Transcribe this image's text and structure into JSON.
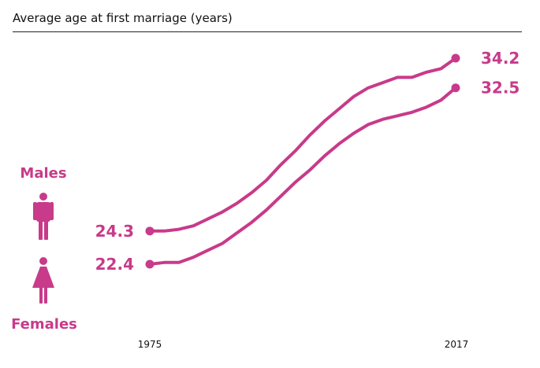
{
  "title": "Average age at first marriage (years)",
  "chart_data": {
    "type": "line",
    "x": [
      1975,
      1977,
      1979,
      1981,
      1983,
      1985,
      1987,
      1989,
      1991,
      1993,
      1995,
      1997,
      1999,
      2001,
      2003,
      2005,
      2007,
      2009,
      2011,
      2013,
      2015,
      2017
    ],
    "xticks": [
      "1975",
      "2017"
    ],
    "series": [
      {
        "name": "Males",
        "values": [
          24.3,
          24.3,
          24.4,
          24.6,
          25.0,
          25.4,
          25.9,
          26.5,
          27.2,
          28.1,
          28.9,
          29.8,
          30.6,
          31.3,
          32.0,
          32.5,
          32.8,
          33.1,
          33.1,
          33.4,
          33.6,
          34.2
        ],
        "start_label": "24.3",
        "end_label": "34.2"
      },
      {
        "name": "Females",
        "values": [
          22.4,
          22.5,
          22.5,
          22.8,
          23.2,
          23.6,
          24.2,
          24.8,
          25.5,
          26.3,
          27.1,
          27.8,
          28.6,
          29.3,
          29.9,
          30.4,
          30.7,
          30.9,
          31.1,
          31.4,
          31.8,
          32.5
        ],
        "start_label": "22.4",
        "end_label": "32.5"
      }
    ],
    "ylim": [
      22.4,
      34.2
    ],
    "grid": false,
    "legend": "left",
    "colors": {
      "line": "#c83a8a"
    }
  },
  "icons": {
    "males": "male-figure-icon",
    "females": "female-figure-icon"
  }
}
